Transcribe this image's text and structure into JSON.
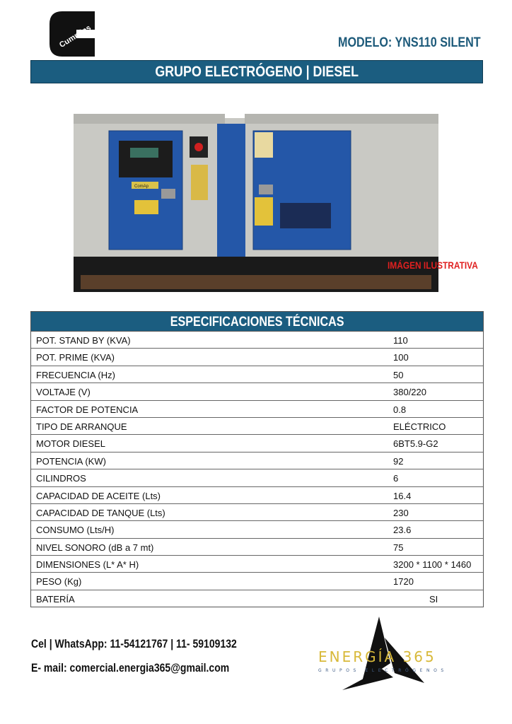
{
  "header": {
    "brand_logo": "Cummins",
    "model": "MODELO: YNS110 SILENT",
    "title": "GRUPO ELECTRÓGENO | DIESEL"
  },
  "image": {
    "panel_label": "ComAp",
    "caption": "IMÁGEN ILUSTRATIVA"
  },
  "specs": {
    "title": "ESPECIFICACIONES TÉCNICAS",
    "rows": [
      {
        "label": "POT. STAND BY (KVA)",
        "value": "110"
      },
      {
        "label": "POT. PRIME (KVA)",
        "value": "100"
      },
      {
        "label": "FRECUENCIA (Hz)",
        "value": "50"
      },
      {
        "label": "VOLTAJE (V)",
        "value": "380/220"
      },
      {
        "label": "FACTOR DE POTENCIA",
        "value": "0.8"
      },
      {
        "label": "TIPO DE ARRANQUE",
        "value": "ELÉCTRICO"
      },
      {
        "label": "MOTOR DIESEL",
        "value": "6BT5.9-G2"
      },
      {
        "label": "POTENCIA (KW)",
        "value": "92"
      },
      {
        "label": "CILINDROS",
        "value": "6"
      },
      {
        "label": "CAPACIDAD DE ACEITE (Lts)",
        "value": "16.4"
      },
      {
        "label": "CAPACIDAD DE TANQUE (Lts)",
        "value": "230"
      },
      {
        "label": "CONSUMO (Lts/H)",
        "value": "23.6"
      },
      {
        "label": "NIVEL SONORO (dB a 7 mt)",
        "value": "75"
      },
      {
        "label": "DIMENSIONES (L* A* H)",
        "value": "3200 * 1100 * 1460"
      },
      {
        "label": "PESO (Kg)",
        "value": "1720"
      },
      {
        "label": "BATERÍA",
        "value": "SI"
      }
    ]
  },
  "contact": {
    "phone": "Cel | WhatsApp: 11-54121767 | 11- 59109132",
    "email": "E- mail: comercial.energia365@gmail.com"
  },
  "footer_logo": {
    "name": "ENERGÍA 365",
    "subtitle": "GRUPOS ELECTRÓGENOS"
  },
  "colors": {
    "accent": "#1b5d80",
    "model_text": "#1d5a7a",
    "caption": "#e02020",
    "logo_gold": "#d8b93a"
  }
}
